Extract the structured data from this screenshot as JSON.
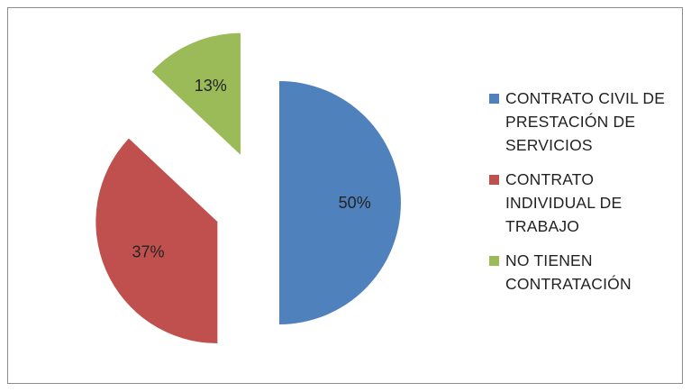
{
  "chart_data": {
    "type": "pie",
    "exploded": true,
    "slices": [
      {
        "label": "CONTRATO CIVIL DE PRESTACIÓN DE SERVICIOS",
        "value": 50,
        "data_label": "50%",
        "color": "#4f81bd"
      },
      {
        "label": "CONTRATO INDIVIDUAL DE TRABAJO",
        "value": 37,
        "data_label": "37%",
        "color": "#c0504d"
      },
      {
        "label": "NO TIENEN CONTRATACIÓN",
        "value": 13,
        "data_label": "13%",
        "color": "#9bbb59"
      }
    ],
    "legend_position": "right"
  }
}
